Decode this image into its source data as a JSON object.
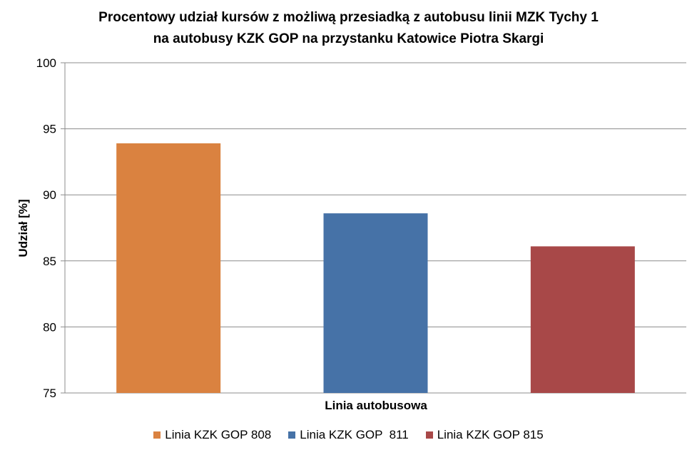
{
  "chart_data": {
    "type": "bar",
    "title_lines": [
      "Procentowy udział kursów z możliwą przesiadką z autobusu linii MZK Tychy 1",
      "na autobusy KZK GOP na przystanku Katowice Piotra Skargi"
    ],
    "xlabel": "Linia autobusowa",
    "ylabel": "Udział [%]",
    "ylim": [
      75,
      100
    ],
    "yticks": [
      75,
      80,
      85,
      90,
      95,
      100
    ],
    "grid": true,
    "legend_position": "bottom",
    "series": [
      {
        "name": "Linia KZK GOP 808",
        "value": 93.9,
        "color": "#DA8240"
      },
      {
        "name": "Linia KZK GOP  811",
        "value": 88.6,
        "color": "#4672A7"
      },
      {
        "name": "Linia KZK GOP 815",
        "value": 86.1,
        "color": "#A84848"
      }
    ]
  }
}
